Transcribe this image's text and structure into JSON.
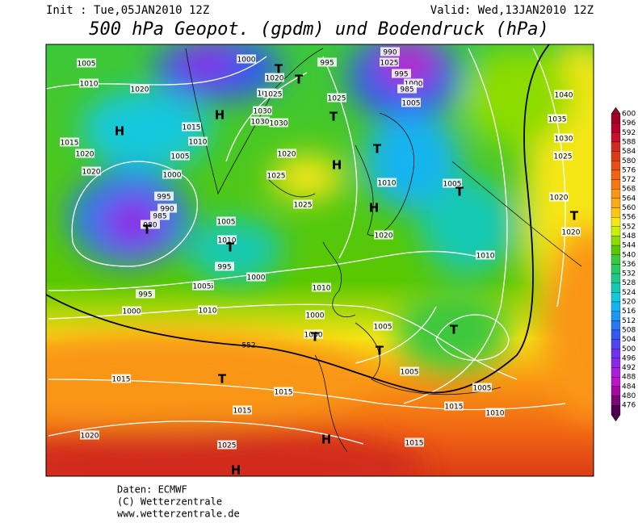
{
  "header": {
    "init": "Init : Tue,05JAN2010 12Z",
    "valid": "Valid: Wed,13JAN2010 12Z",
    "title": "500 hPa Geopot. (gpdm) und Bodendruck (hPa)"
  },
  "map": {
    "contour_label": "552",
    "isobar_labels": [
      "1005",
      "1010",
      "1020",
      "1015",
      "1020",
      "1000",
      "995",
      "990",
      "985",
      "980",
      "995",
      "1000",
      "1010",
      "1005",
      "1015",
      "1010",
      "1005",
      "1000",
      "1020",
      "1015",
      "1030",
      "1030",
      "1030",
      "1025",
      "1020",
      "1025",
      "1025",
      "1025",
      "1000",
      "1005",
      "1010",
      "1020",
      "1025",
      "995",
      "990",
      "985",
      "995",
      "1000",
      "1005",
      "1010",
      "1000",
      "995",
      "1005",
      "1015",
      "1005",
      "1000",
      "1005",
      "1010",
      "1040",
      "1035",
      "1030",
      "1025",
      "1020",
      "1020",
      "1015",
      "1015",
      "1020",
      "1025",
      "1015",
      "1020",
      "1005",
      "1010",
      "1005",
      "1015",
      "1010"
    ],
    "pressure_centers": [
      "H",
      "H",
      "T",
      "T",
      "T",
      "H",
      "H",
      "T",
      "T",
      "T",
      "T",
      "T",
      "T",
      "T",
      "T",
      "H",
      "H",
      "T"
    ]
  },
  "colorbar": {
    "levels": [
      600,
      596,
      592,
      588,
      584,
      580,
      576,
      572,
      568,
      564,
      560,
      556,
      552,
      548,
      544,
      540,
      536,
      532,
      528,
      524,
      520,
      516,
      512,
      508,
      504,
      500,
      496,
      492,
      488,
      484,
      480,
      476
    ],
    "colors": [
      "#a0002a",
      "#b4002a",
      "#c8102a",
      "#d22a1e",
      "#dc3c14",
      "#e65014",
      "#f06414",
      "#f57814",
      "#fa9614",
      "#faaa14",
      "#fac814",
      "#f5e614",
      "#c8f000",
      "#8cdc00",
      "#5ac800",
      "#3cc83c",
      "#28c864",
      "#1ec88c",
      "#14c8b4",
      "#14c8dc",
      "#14b4f0",
      "#1e96f0",
      "#2878f0",
      "#325af0",
      "#5046f0",
      "#6e32f0",
      "#8c28e6",
      "#aa1edc",
      "#be14c8",
      "#a00aa0",
      "#780a78",
      "#500050"
    ]
  },
  "footer": {
    "source": "Daten: ECMWF",
    "copyright": "(C) Wetterzentrale",
    "url": "www.wetterzentrale.de"
  }
}
